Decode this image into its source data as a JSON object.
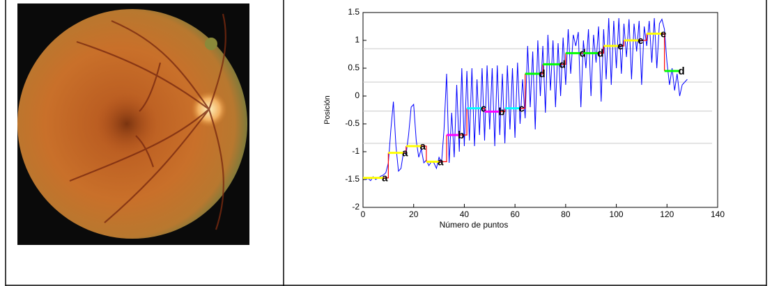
{
  "chart_data": {
    "type": "line",
    "xlabel": "Número de puntos",
    "ylabel": "Posición",
    "xlim": [
      0,
      140
    ],
    "xticks": [
      0,
      20,
      40,
      60,
      80,
      100,
      120,
      140
    ],
    "ylim": [
      -2,
      1.5
    ],
    "yticks": [
      -2,
      -1.5,
      -1,
      -0.5,
      0,
      0.5,
      1,
      1.5
    ],
    "reference_lines": [
      0.85,
      0.25,
      -0.27,
      -0.85
    ],
    "series": [
      {
        "color": "#0000ff",
        "x": [
          1,
          2,
          3,
          4,
          5,
          6,
          7,
          8,
          9,
          10,
          11,
          12,
          13,
          14,
          15,
          16,
          17,
          18,
          19,
          20,
          21,
          22,
          23,
          24,
          25,
          26,
          27,
          28,
          29,
          30,
          31,
          32,
          33,
          34,
          35,
          36,
          37,
          38,
          39,
          40,
          41,
          42,
          43,
          44,
          45,
          46,
          47,
          48,
          49,
          50,
          51,
          52,
          53,
          54,
          55,
          56,
          57,
          58,
          59,
          60,
          61,
          62,
          63,
          64,
          65,
          66,
          67,
          68,
          69,
          70,
          71,
          72,
          73,
          74,
          75,
          76,
          77,
          78,
          79,
          80,
          81,
          82,
          83,
          84,
          85,
          86,
          87,
          88,
          89,
          90,
          91,
          92,
          93,
          94,
          95,
          96,
          97,
          98,
          99,
          100,
          101,
          102,
          103,
          104,
          105,
          106,
          107,
          108,
          109,
          110,
          111,
          112,
          113,
          114,
          115,
          116,
          117,
          118,
          119,
          120,
          121,
          122,
          123,
          124,
          125,
          126,
          127,
          128
        ],
        "values": [
          -1.5,
          -1.48,
          -1.52,
          -1.45,
          -1.5,
          -1.47,
          -1.44,
          -1.42,
          -1.38,
          -1.2,
          -0.6,
          -0.1,
          -0.9,
          -1.35,
          -1.3,
          -1.0,
          -1.05,
          -0.7,
          -0.2,
          -0.15,
          -0.8,
          -1.1,
          -0.95,
          -1.2,
          -1.15,
          -1.25,
          -1.18,
          -1.2,
          -1.3,
          -1.1,
          -1.2,
          -0.6,
          0.4,
          -1.2,
          -0.3,
          -1.1,
          0.2,
          -1.0,
          0.5,
          -0.9,
          0.45,
          -0.8,
          0.5,
          -0.9,
          0.3,
          -0.7,
          0.5,
          -0.8,
          0.55,
          -0.6,
          0.5,
          -0.9,
          0.55,
          -0.7,
          0.4,
          -0.85,
          0.55,
          -0.6,
          0.5,
          -0.75,
          0.6,
          -0.5,
          0.3,
          -0.4,
          0.9,
          -0.2,
          0.8,
          -0.6,
          1.0,
          0.0,
          0.9,
          -0.3,
          1.1,
          0.1,
          1.0,
          -0.2,
          0.95,
          0.0,
          1.05,
          0.2,
          1.2,
          0.4,
          1.1,
          0.9,
          1.15,
          -0.2,
          1.0,
          0.5,
          1.2,
          0.0,
          1.1,
          0.6,
          1.25,
          -0.1,
          1.2,
          0.3,
          1.4,
          0.2,
          1.35,
          0.5,
          1.4,
          0.4,
          1.3,
          0.7,
          1.38,
          0.3,
          1.3,
          0.8,
          1.35,
          0.2,
          1.25,
          0.9,
          1.35,
          0.6,
          1.4,
          0.5,
          1.3,
          1.38,
          1.2,
          0.6,
          0.2,
          0.5,
          0.1,
          0.4,
          0.0,
          0.2,
          0.25,
          0.3
        ]
      }
    ],
    "steps": [
      {
        "label": "a",
        "color": "#ffff00",
        "x": [
          0,
          8
        ],
        "value": -1.47
      },
      {
        "label": "a",
        "color": "#ffff00",
        "x": [
          10,
          16
        ],
        "value": -1.02
      },
      {
        "label": "a",
        "color": "#ffff00",
        "x": [
          17,
          23
        ],
        "value": -0.9
      },
      {
        "label": "a",
        "color": "#ffff00",
        "x": [
          25,
          30
        ],
        "value": -1.18
      },
      {
        "label": "b",
        "color": "#ff00ff",
        "x": [
          33,
          38
        ],
        "value": -0.7
      },
      {
        "label": "c",
        "color": "#00ffff",
        "x": [
          41,
          47
        ],
        "value": -0.22
      },
      {
        "label": "b",
        "color": "#ff00ff",
        "x": [
          48,
          54
        ],
        "value": -0.28
      },
      {
        "label": "c",
        "color": "#00ffff",
        "x": [
          56,
          62
        ],
        "value": -0.22
      },
      {
        "label": "d",
        "color": "#00ff00",
        "x": [
          64,
          70
        ],
        "value": 0.4
      },
      {
        "label": "d",
        "color": "#00ff00",
        "x": [
          71,
          78
        ],
        "value": 0.57
      },
      {
        "label": "d",
        "color": "#00ff00",
        "x": [
          80,
          86
        ],
        "value": 0.77
      },
      {
        "label": "d",
        "color": "#00ff00",
        "x": [
          87,
          93
        ],
        "value": 0.77
      },
      {
        "label": "e",
        "color": "#ffff00",
        "x": [
          95,
          101
        ],
        "value": 0.9
      },
      {
        "label": "e",
        "color": "#ffff00",
        "x": [
          103,
          109
        ],
        "value": 1.0
      },
      {
        "label": "e",
        "color": "#ffff00",
        "x": [
          112,
          118
        ],
        "value": 1.12
      },
      {
        "label": "d",
        "color": "#00ff00",
        "x": [
          119,
          125
        ],
        "value": 0.45
      }
    ]
  }
}
